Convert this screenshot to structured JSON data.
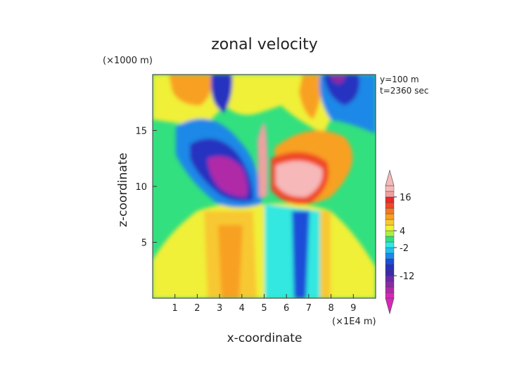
{
  "chart_data": {
    "type": "heatmap",
    "title": "zonal velocity",
    "xlabel": "x-coordinate",
    "ylabel": "z-coordinate",
    "x_unit_label": "(×1E4 m)",
    "y_unit_label": "(×1000 m)",
    "annotations": [
      "y=100 m",
      "t=2360 sec"
    ],
    "xlim": [
      0,
      10
    ],
    "ylim": [
      0,
      20
    ],
    "x_ticks": [
      1,
      2,
      3,
      4,
      5,
      6,
      7,
      8,
      9
    ],
    "y_ticks": [
      5,
      10,
      15
    ],
    "colorbar": {
      "levels": [
        -20,
        -18,
        -16,
        -14,
        -12,
        -10,
        -8,
        -6,
        -4,
        -2,
        0,
        2,
        4,
        6,
        8,
        10,
        12,
        14,
        16,
        18,
        20
      ],
      "labeled_levels": [
        16,
        4,
        -2,
        -12
      ],
      "colors": [
        "#d628b8",
        "#b02aa8",
        "#8a2ca4",
        "#6a2aa8",
        "#3a2ca8",
        "#2630c0",
        "#1c4ed8",
        "#1e88e8",
        "#20c0f0",
        "#30e8e0",
        "#32e080",
        "#a8f040",
        "#f0f038",
        "#f8c830",
        "#f8a020",
        "#f47828",
        "#f04828",
        "#e82a2a",
        "#f0a0a0",
        "#f6b8b8"
      ],
      "extend": "both"
    },
    "field_description": "2-D zonal velocity field, colour-filled contours"
  }
}
